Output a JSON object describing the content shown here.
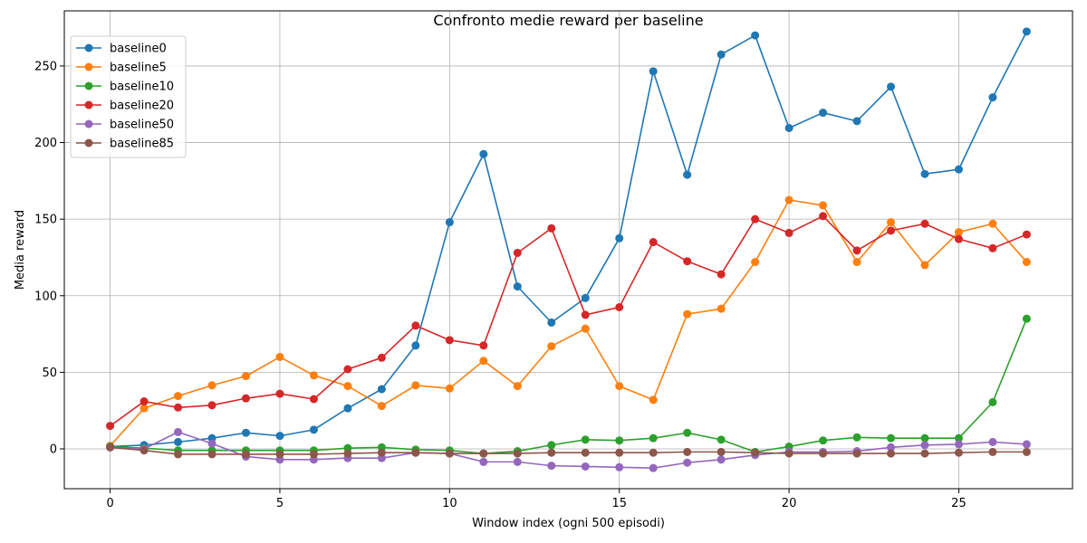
{
  "chart_data": {
    "type": "line",
    "title": "Confronto medie reward per baseline",
    "xlabel": "Window index (ogni 500 episodi)",
    "ylabel": "Media reward",
    "xlim": [
      -1.35,
      28.35
    ],
    "ylim": [
      -26,
      286
    ],
    "xticks": [
      0,
      5,
      10,
      15,
      20,
      25
    ],
    "yticks": [
      0,
      50,
      100,
      150,
      200,
      250
    ],
    "grid": true,
    "legend_position": "top-left",
    "x": [
      0,
      1,
      2,
      3,
      4,
      5,
      6,
      7,
      8,
      9,
      10,
      11,
      12,
      13,
      14,
      15,
      16,
      17,
      18,
      19,
      20,
      21,
      22,
      23,
      24,
      25,
      26,
      27
    ],
    "series": [
      {
        "name": "baseline0",
        "color": "#1f77b4",
        "values": [
          1.5,
          2.5,
          4.5,
          7,
          10.5,
          8.5,
          12.5,
          26.5,
          39,
          67.5,
          148,
          192.5,
          106,
          82.5,
          98.5,
          137.5,
          246.5,
          179,
          257.5,
          270,
          209.5,
          219.5,
          214,
          236.5,
          179.5,
          182.5,
          229.5,
          272.5
        ]
      },
      {
        "name": "baseline5",
        "color": "#ff7f0e",
        "values": [
          2,
          26.5,
          34.5,
          41.5,
          47.5,
          60,
          48,
          41,
          28,
          41.5,
          39.5,
          57.5,
          41,
          67,
          78.5,
          41,
          32,
          88,
          91.5,
          122,
          162.5,
          159,
          122,
          148,
          120,
          141.5,
          147,
          122
        ]
      },
      {
        "name": "baseline10",
        "color": "#2ca02c",
        "values": [
          1.5,
          0.5,
          -1,
          -1,
          -1,
          -1,
          -1,
          0.5,
          1,
          -0.5,
          -1,
          -3,
          -1.5,
          2.5,
          6,
          5.5,
          7,
          10.5,
          6,
          -2,
          1.5,
          5.5,
          7.5,
          7,
          7,
          7,
          30.5,
          85
        ]
      },
      {
        "name": "baseline20",
        "color": "#d62728",
        "values": [
          15,
          31,
          27,
          28.5,
          33,
          36,
          32.5,
          52,
          59.5,
          80.5,
          71,
          67.5,
          128,
          144,
          87.5,
          92.5,
          135,
          122.5,
          114,
          150,
          141,
          152,
          129.5,
          142.5,
          147,
          137,
          131,
          140
        ]
      },
      {
        "name": "baseline50",
        "color": "#9467bd",
        "values": [
          1,
          0,
          11,
          3.5,
          -5,
          -7,
          -7,
          -6,
          -6,
          -2.5,
          -3,
          -8.5,
          -8.5,
          -11,
          -11.5,
          -12,
          -12.5,
          -9,
          -7,
          -4,
          -2,
          -2,
          -1.5,
          1,
          2.5,
          3,
          4.5,
          3
        ]
      },
      {
        "name": "baseline85",
        "color": "#8c564b",
        "values": [
          1,
          -1,
          -3.5,
          -3.5,
          -3.5,
          -3.5,
          -3.5,
          -3,
          -2.5,
          -2.5,
          -3,
          -3,
          -3,
          -2.5,
          -2.5,
          -2.5,
          -2.5,
          -2,
          -2,
          -2.5,
          -3,
          -3,
          -3,
          -3,
          -3,
          -2.5,
          -2,
          -2
        ]
      }
    ]
  }
}
